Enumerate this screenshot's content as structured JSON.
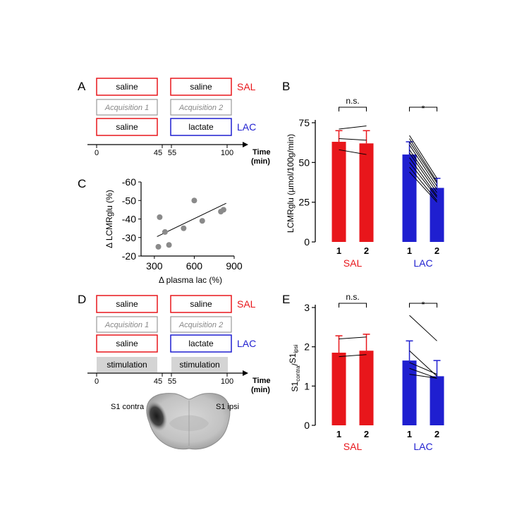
{
  "panels": {
    "A": {
      "label": "A",
      "row1": {
        "box1": "saline",
        "box2": "saline",
        "group": "SAL"
      },
      "acq": {
        "box1": "Acquisition 1",
        "box2": "Acquisition 2"
      },
      "row3": {
        "box1": "saline",
        "box2": "lactate",
        "group": "LAC"
      },
      "timeline": {
        "ticks": [
          "0",
          "45",
          "55",
          "100"
        ],
        "unit_line1": "Time",
        "unit_line2": "(min)"
      }
    },
    "B": {
      "label": "B"
    },
    "C": {
      "label": "C"
    },
    "D": {
      "label": "D",
      "row1": {
        "box1": "saline",
        "box2": "saline",
        "group": "SAL"
      },
      "acq": {
        "box1": "Acquisition 1",
        "box2": "Acquisition 2"
      },
      "row3": {
        "box1": "saline",
        "box2": "lactate",
        "group": "LAC"
      },
      "stim": {
        "box1": "stimulation",
        "box2": "stimulation"
      },
      "timeline": {
        "ticks": [
          "0",
          "45",
          "55",
          "100"
        ],
        "unit_line1": "Time",
        "unit_line2": "(min)"
      },
      "brain": {
        "left_label": "S1 contra",
        "right_label": "S1 ipsi"
      }
    },
    "E": {
      "label": "E"
    }
  },
  "colors": {
    "sal": "#e8161b",
    "lac": "#1f1fd0",
    "scatter": "#8a8a8a"
  },
  "chart_data": [
    {
      "id": "B",
      "type": "bar",
      "ylabel": "LCMRglu (µmol/100g/min)",
      "ylim": [
        0,
        75
      ],
      "yticks": [
        0,
        25,
        50,
        75
      ],
      "groups": [
        {
          "name": "SAL",
          "categories": [
            "1",
            "2"
          ],
          "values": [
            63,
            62
          ],
          "errors": [
            7,
            8
          ],
          "significance": "n.s.",
          "pairs": [
            [
              71,
              73
            ],
            [
              65,
              64
            ],
            [
              58,
              55
            ]
          ]
        },
        {
          "name": "LAC",
          "categories": [
            "1",
            "2"
          ],
          "values": [
            55,
            34
          ],
          "errors": [
            8,
            6
          ],
          "significance": "*",
          "pairs": [
            [
              67,
              40
            ],
            [
              65,
              38
            ],
            [
              63,
              37
            ],
            [
              61,
              35
            ],
            [
              58,
              33
            ],
            [
              56,
              31
            ],
            [
              53,
              29
            ],
            [
              50,
              28
            ],
            [
              47,
              26
            ],
            [
              44,
              25
            ]
          ]
        }
      ]
    },
    {
      "id": "C",
      "type": "scatter",
      "xlabel": "Δ plasma lac (%)",
      "ylabel": "Δ LCMRglu (%)",
      "xlim": [
        200,
        900
      ],
      "ylim": [
        -20,
        -60
      ],
      "xticks": [
        300,
        600,
        900
      ],
      "yticks": [
        -20,
        -30,
        -40,
        -50,
        -60
      ],
      "x": [
        330,
        340,
        380,
        410,
        520,
        600,
        660,
        800,
        820
      ],
      "y": [
        -25,
        -41,
        -33,
        -26,
        -35,
        -50,
        -39,
        -44,
        -45
      ],
      "fit": {
        "x": [
          320,
          840
        ],
        "y": [
          -30.5,
          -48.5
        ]
      }
    },
    {
      "id": "E",
      "type": "bar",
      "ylabel": "S1contra/S1ipsi",
      "ylabel_parts": {
        "base1": "S1",
        "sub1": "contra",
        "slash": "/",
        "base2": "S1",
        "sub2": "ipsi"
      },
      "ylim": [
        0,
        3
      ],
      "yticks": [
        0,
        1,
        2,
        3
      ],
      "groups": [
        {
          "name": "SAL",
          "categories": [
            "1",
            "2"
          ],
          "values": [
            1.85,
            1.9
          ],
          "errors": [
            0.43,
            0.42
          ],
          "significance": "n.s.",
          "pairs": [
            [
              2.2,
              2.25
            ],
            [
              1.75,
              1.8
            ]
          ]
        },
        {
          "name": "LAC",
          "categories": [
            "1",
            "2"
          ],
          "values": [
            1.65,
            1.25
          ],
          "errors": [
            0.5,
            0.4
          ],
          "significance": "*",
          "pairs": [
            [
              2.8,
              2.15
            ],
            [
              1.9,
              1.25
            ],
            [
              1.6,
              1.3
            ],
            [
              1.45,
              1.2
            ],
            [
              1.3,
              1.2
            ]
          ]
        }
      ]
    }
  ]
}
